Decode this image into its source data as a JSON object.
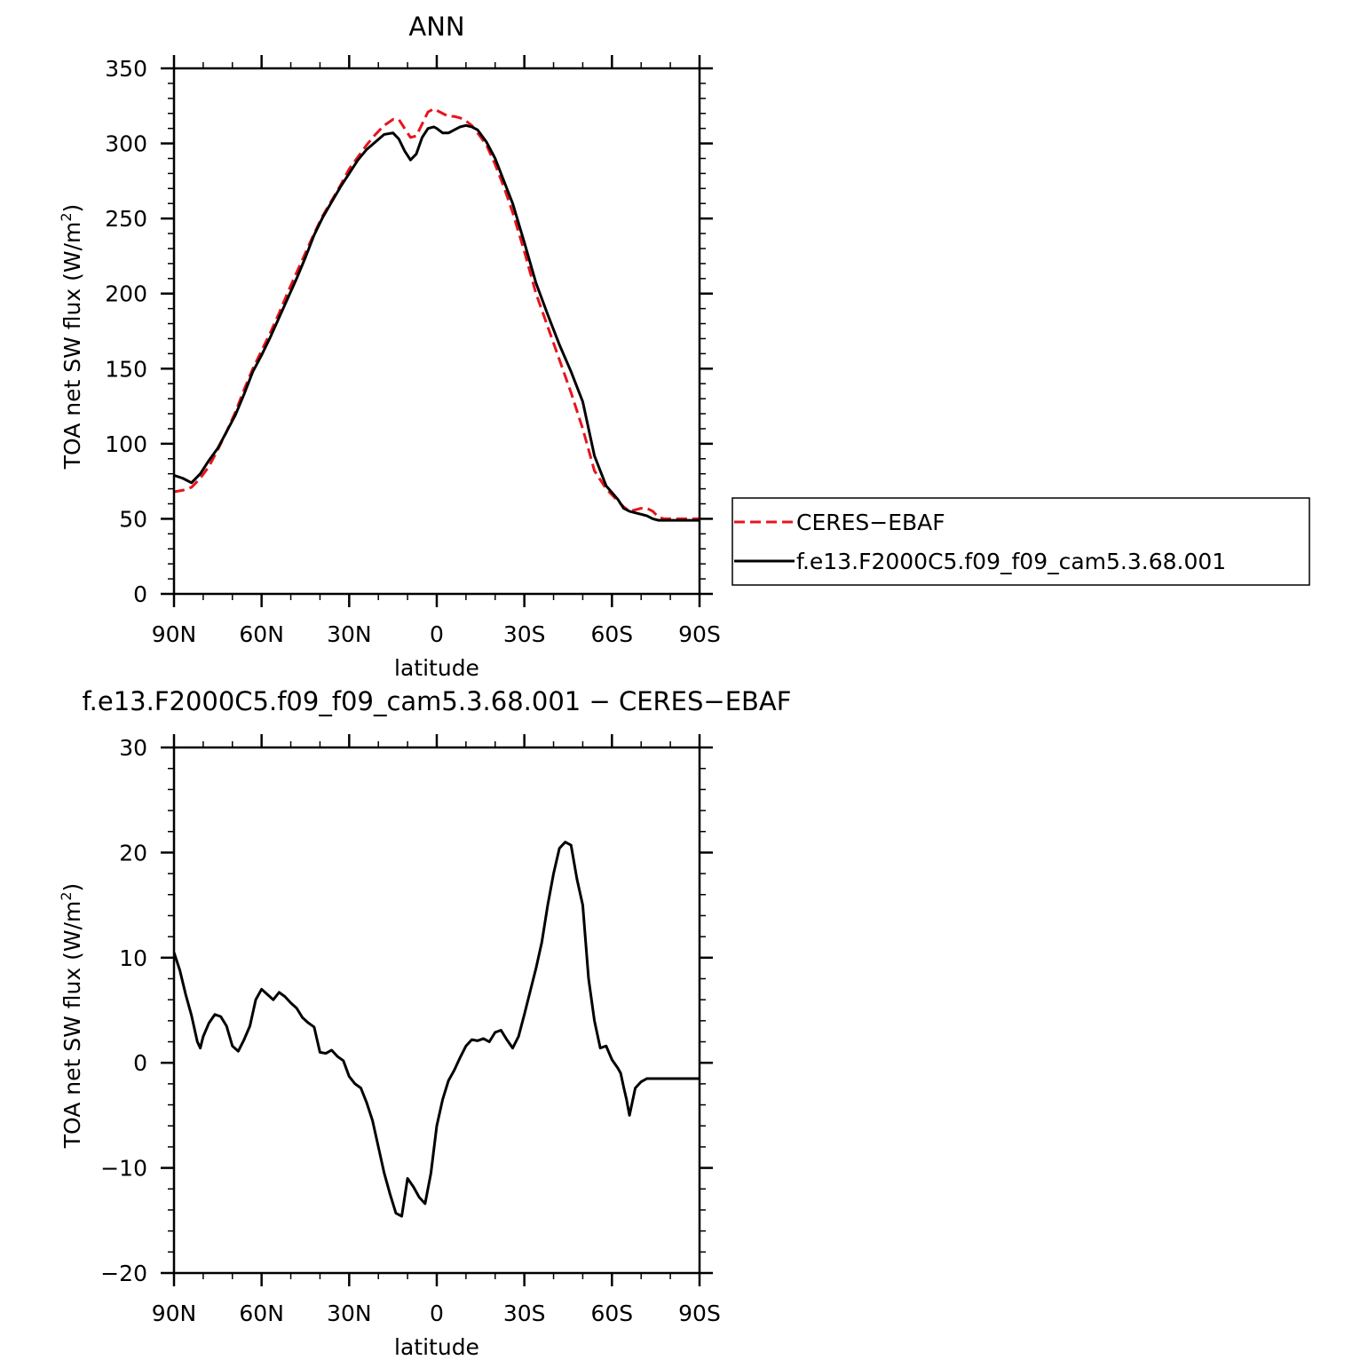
{
  "figure": {
    "colors": {
      "obs": "#e8141c",
      "model": "#000000",
      "frame": "#000000"
    }
  },
  "chart_data": [
    {
      "type": "line",
      "title": "ANN",
      "xlabel": "latitude",
      "ylabel": "TOA net SW flux (W/m",
      "ylabel_sup": "2",
      "ylabel_close": ")",
      "xlim": [
        90,
        -90
      ],
      "ylim": [
        0,
        350
      ],
      "x_tick_values": [
        90,
        60,
        30,
        0,
        -30,
        -60,
        -90
      ],
      "x_tick_labels": [
        "90N",
        "60N",
        "30N",
        "0",
        "30S",
        "60S",
        "90S"
      ],
      "y_tick_values": [
        0,
        50,
        100,
        150,
        200,
        250,
        300,
        350
      ],
      "y_tick_labels": [
        "0",
        "50",
        "100",
        "150",
        "200",
        "250",
        "300",
        "350"
      ],
      "grid": false,
      "legend_position": "right",
      "series": [
        {
          "name": "CERES−EBAF",
          "style": "dashed",
          "color": "#e8141c",
          "x": [
            90,
            87,
            84,
            81,
            78,
            75,
            72,
            69,
            66,
            63,
            60,
            57,
            54,
            51,
            48,
            45,
            42,
            39,
            36,
            33,
            30,
            27,
            24,
            21,
            18,
            15,
            13,
            11,
            9,
            7,
            5,
            3,
            1,
            0,
            -2,
            -4,
            -6,
            -8,
            -10,
            -12,
            -14,
            -17,
            -20,
            -23,
            -26,
            -30,
            -34,
            -38,
            -42,
            -46,
            -50,
            -54,
            -58,
            -62,
            -64,
            -66,
            -68,
            -70,
            -72,
            -74,
            -76,
            -78,
            -80,
            -82,
            -84,
            -86,
            -88,
            -90
          ],
          "y": [
            68,
            69,
            71,
            77,
            85,
            96,
            108,
            121,
            136,
            150,
            162,
            174,
            187,
            201,
            214,
            227,
            240,
            252,
            262,
            272,
            283,
            291,
            299,
            306,
            312,
            316,
            316,
            310,
            304,
            305,
            313,
            321,
            323,
            322,
            320,
            318,
            318,
            317,
            315,
            312,
            307,
            299,
            286,
            271,
            254,
            228,
            200,
            178,
            156,
            134,
            110,
            82,
            70,
            62,
            58,
            55,
            56,
            57,
            57,
            55,
            51,
            50,
            50,
            50,
            50,
            50,
            50,
            50
          ]
        },
        {
          "name": "f.e13.F2000C5.f09_f09_cam5.3.68.001",
          "style": "solid",
          "color": "#000000",
          "x": [
            90,
            87,
            84,
            81,
            78,
            75,
            72,
            69,
            66,
            63,
            60,
            57,
            54,
            51,
            48,
            45,
            42,
            39,
            36,
            33,
            30,
            27,
            24,
            21,
            18,
            15,
            13,
            11,
            9,
            7,
            5,
            3,
            1,
            0,
            -2,
            -4,
            -6,
            -8,
            -10,
            -12,
            -14,
            -17,
            -20,
            -23,
            -26,
            -30,
            -34,
            -38,
            -42,
            -46,
            -50,
            -54,
            -58,
            -62,
            -64,
            -66,
            -68,
            -70,
            -72,
            -74,
            -76,
            -78,
            -80,
            -82,
            -84,
            -86,
            -88,
            -90
          ],
          "y": [
            79,
            77,
            74,
            80,
            89,
            97,
            108,
            119,
            133,
            148,
            159,
            171,
            184,
            197,
            210,
            224,
            239,
            251,
            261,
            271,
            280,
            289,
            296,
            301,
            306,
            307,
            303,
            295,
            289,
            293,
            304,
            310,
            311,
            310,
            307,
            307,
            309,
            311,
            312,
            311,
            309,
            301,
            290,
            275,
            260,
            234,
            207,
            186,
            166,
            148,
            128,
            92,
            72,
            63,
            57,
            55,
            54,
            53,
            52,
            50,
            49,
            49,
            49,
            49,
            49,
            49,
            49,
            49
          ]
        }
      ]
    },
    {
      "type": "line",
      "title": "f.e13.F2000C5.f09_f09_cam5.3.68.001 − CERES−EBAF",
      "xlabel": "latitude",
      "ylabel": "TOA net SW flux (W/m",
      "ylabel_sup": "2",
      "ylabel_close": ")",
      "xlim": [
        90,
        -90
      ],
      "ylim": [
        -20,
        30
      ],
      "x_tick_values": [
        90,
        60,
        30,
        0,
        -30,
        -60,
        -90
      ],
      "x_tick_labels": [
        "90N",
        "60N",
        "30N",
        "0",
        "30S",
        "60S",
        "90S"
      ],
      "y_tick_values": [
        -20,
        -10,
        0,
        10,
        20,
        30
      ],
      "y_tick_labels": [
        "−20",
        "−10",
        "0",
        "10",
        "20",
        "30"
      ],
      "grid": false,
      "series": [
        {
          "name": "",
          "style": "solid",
          "color": "#000000",
          "x": [
            90,
            88,
            86,
            84,
            82,
            81,
            80,
            78,
            76,
            74,
            72,
            70,
            68,
            66,
            64,
            62,
            60,
            58,
            56,
            54,
            52,
            50,
            48,
            46,
            44,
            42,
            40,
            38,
            36,
            34,
            32,
            30,
            28,
            26,
            24,
            22,
            20,
            18,
            16,
            14,
            12,
            10,
            8,
            6,
            4,
            2,
            0,
            -2,
            -4,
            -6,
            -8,
            -10,
            -12,
            -14,
            -16,
            -18,
            -20,
            -22,
            -24,
            -26,
            -28,
            -30,
            -32,
            -34,
            -36,
            -38,
            -40,
            -42,
            -44,
            -46,
            -48,
            -50,
            -52,
            -54,
            -56,
            -58,
            -60,
            -62,
            -63,
            -64,
            -65,
            -66,
            -68,
            -70,
            -72,
            -74,
            -76,
            -78,
            -80,
            -82,
            -84,
            -86,
            -87,
            -88,
            -90
          ],
          "y": [
            10.5,
            8.8,
            6.5,
            4.5,
            2.0,
            1.4,
            2.5,
            3.8,
            4.6,
            4.4,
            3.5,
            1.6,
            1.1,
            2.2,
            3.5,
            6.0,
            7.0,
            6.5,
            6.0,
            6.7,
            6.3,
            5.7,
            5.2,
            4.3,
            3.8,
            3.4,
            1.0,
            0.9,
            1.2,
            0.6,
            0.2,
            -1.3,
            -2.0,
            -2.4,
            -3.8,
            -5.5,
            -8.0,
            -10.5,
            -12.5,
            -14.3,
            -14.6,
            -11.0,
            -11.8,
            -12.8,
            -13.4,
            -10.5,
            -6.0,
            -3.5,
            -1.7,
            -0.7,
            0.5,
            1.6,
            2.2,
            2.1,
            2.3,
            2.0,
            2.9,
            3.1,
            2.2,
            1.4,
            2.5,
            4.6,
            6.8,
            9.0,
            11.5,
            15.0,
            18.0,
            20.4,
            21.0,
            20.7,
            17.5,
            15.0,
            8.0,
            4.0,
            1.4,
            1.6,
            0.3,
            -0.5,
            -1.0,
            -2.3,
            -3.5,
            -5.0,
            -2.4,
            -1.8,
            -1.5,
            -1.5,
            -1.5,
            -1.5,
            -1.5,
            -1.5,
            -1.5,
            -1.5,
            -1.5,
            -1.5,
            -1.5
          ]
        }
      ]
    }
  ]
}
